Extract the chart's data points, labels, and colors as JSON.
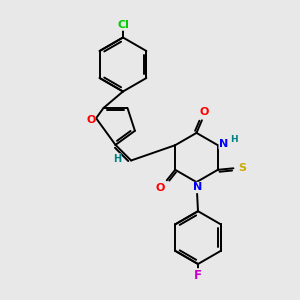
{
  "background_color": "#e8e8e8",
  "bond_color": "#000000",
  "atom_colors": {
    "Cl": "#00cc00",
    "O": "#ff0000",
    "N": "#0000ff",
    "S": "#ccaa00",
    "F": "#cc00cc",
    "H": "#008080",
    "C": "#000000"
  },
  "font_size": 8.0,
  "figsize": [
    3.0,
    3.0
  ],
  "dpi": 100
}
